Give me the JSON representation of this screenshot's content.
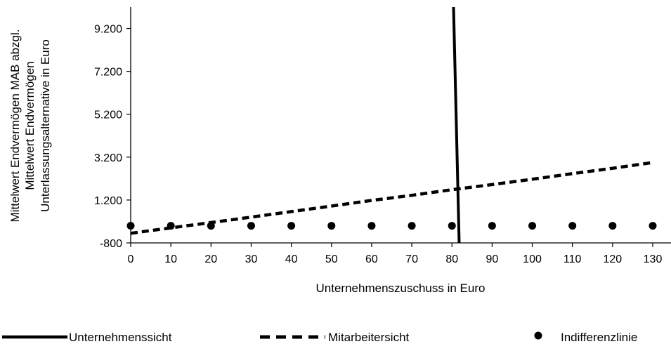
{
  "chart_data": {
    "type": "line",
    "title": "",
    "xlabel": "Unternehmenszuschuss in Euro",
    "ylabel_lines": [
      "Mittelwert Endvermögen MAB abzgl.",
      "Mittelwert Endvermögen",
      "Unterlassungsalternative in Euro"
    ],
    "xlim": [
      0,
      132
    ],
    "ylim": [
      -800,
      10200
    ],
    "x_ticks": [
      0,
      10,
      20,
      30,
      40,
      50,
      60,
      70,
      80,
      90,
      100,
      110,
      120,
      130
    ],
    "x_tick_labels": [
      "0",
      "10",
      "20",
      "30",
      "40",
      "50",
      "60",
      "70",
      "80",
      "90",
      "100",
      "110",
      "120",
      "130"
    ],
    "y_ticks": [
      -800,
      1200,
      3200,
      5200,
      7200,
      9200
    ],
    "y_tick_labels": [
      "-800",
      "1.200",
      "3.200",
      "5.200",
      "7.200",
      "9.200"
    ],
    "grid": false,
    "legend_position": "bottom",
    "series": [
      {
        "name": "Unternehmenssicht",
        "style": "solid",
        "color": "#000000",
        "x": [
          80.4,
          81.8
        ],
        "y": [
          10200,
          -800
        ]
      },
      {
        "name": "Mitarbeitersicht",
        "style": "dashed",
        "color": "#000000",
        "x": [
          0,
          10,
          20,
          30,
          40,
          50,
          60,
          70,
          80,
          90,
          100,
          110,
          120,
          130
        ],
        "y": [
          -350,
          -100,
          150,
          400,
          660,
          920,
          1180,
          1420,
          1680,
          1920,
          2170,
          2430,
          2680,
          2950
        ]
      },
      {
        "name": "Indifferenzlinie",
        "style": "markers",
        "color": "#000000",
        "x": [
          0,
          10,
          20,
          30,
          40,
          50,
          60,
          70,
          80,
          90,
          100,
          110,
          120,
          130
        ],
        "y": [
          0,
          0,
          0,
          0,
          0,
          0,
          0,
          0,
          0,
          0,
          0,
          0,
          0,
          0
        ]
      }
    ]
  }
}
